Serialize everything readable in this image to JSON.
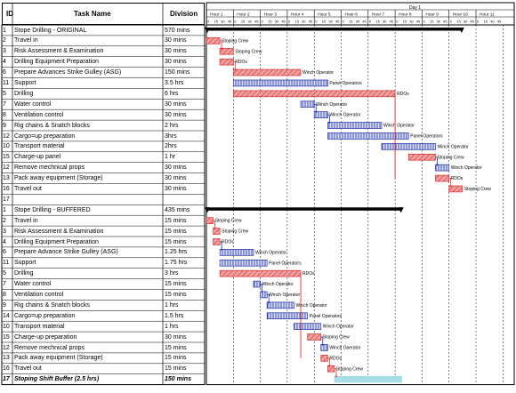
{
  "table": {
    "headers": {
      "id": "ID",
      "task": "Task Name",
      "division": "Division"
    },
    "sections": [
      {
        "rows": [
          {
            "id": "1",
            "name": "Stope Drilling - ORIGINAL",
            "division": "570 mins",
            "start": 0,
            "end": 570,
            "type": "summary"
          },
          {
            "id": "2",
            "name": "Travel in",
            "division": "30 mins",
            "start": 0,
            "end": 30,
            "type": "red",
            "label": "Stoping Crew"
          },
          {
            "id": "3",
            "name": "Risk Assessment & Examination",
            "division": "30 mins",
            "start": 30,
            "end": 60,
            "type": "red",
            "label": "Stoping Crew"
          },
          {
            "id": "4",
            "name": "Drilling Equipment Preparation",
            "division": "30 mins",
            "start": 30,
            "end": 60,
            "type": "red",
            "label": "RDOs"
          },
          {
            "id": "6",
            "name": "Prepare Advances Strike Gulley (ASG)",
            "division": "150 mins",
            "start": 60,
            "end": 210,
            "type": "red",
            "label": "Winch Operator"
          },
          {
            "id": "11",
            "name": "Support",
            "division": "3.5 hrs",
            "start": 60,
            "end": 270,
            "type": "blue",
            "label": "Panel Operators"
          },
          {
            "id": "5",
            "name": "Drilling",
            "division": "6 hrs",
            "start": 60,
            "end": 420,
            "type": "red",
            "label": "RDOs"
          },
          {
            "id": "7",
            "name": "Water control",
            "division": "30 mins",
            "start": 210,
            "end": 240,
            "type": "blue",
            "label": "Winch Operator"
          },
          {
            "id": "8",
            "name": "Ventilation control",
            "division": "30 mins",
            "start": 240,
            "end": 270,
            "type": "blue",
            "label": "Winch Operator"
          },
          {
            "id": "9",
            "name": "Rig chains & Snatch blocks",
            "division": "2 hrs",
            "start": 270,
            "end": 390,
            "type": "blue",
            "label": "Winch Operator"
          },
          {
            "id": "12",
            "name": "Cargo=up preparation",
            "division": "3hrs",
            "start": 270,
            "end": 450,
            "type": "blue",
            "label": "Panel Operators"
          },
          {
            "id": "10",
            "name": "Transport material",
            "division": "2hrs",
            "start": 390,
            "end": 510,
            "type": "blue",
            "label": "Winch Operator"
          },
          {
            "id": "15",
            "name": "Charge-up panel",
            "division": "1 hr",
            "start": 450,
            "end": 510,
            "type": "red",
            "label": "Stoping Crew"
          },
          {
            "id": "12",
            "name": "Remove mechnical props",
            "division": "30 mins",
            "start": 510,
            "end": 540,
            "type": "blue",
            "label": "Winch Operator"
          },
          {
            "id": "13",
            "name": "Pack away equipment (Storage)",
            "division": "30 mins",
            "start": 510,
            "end": 540,
            "type": "red",
            "label": "RDOs"
          },
          {
            "id": "16",
            "name": "Travel out",
            "division": "30 mins",
            "start": 540,
            "end": 570,
            "type": "red",
            "label": "Stoping Crew"
          },
          {
            "id": "17",
            "name": "",
            "division": "",
            "type": "empty"
          }
        ]
      },
      {
        "rows": [
          {
            "id": "1",
            "name": "Stope Drilling - BUFFERED",
            "division": "435 mins",
            "start": 0,
            "end": 435,
            "type": "summary"
          },
          {
            "id": "2",
            "name": "Travel in",
            "division": "15 mins",
            "start": 0,
            "end": 15,
            "type": "red",
            "label": "Stoping Crew"
          },
          {
            "id": "3",
            "name": "Risk Assessment & Examination",
            "division": "15 mins",
            "start": 15,
            "end": 30,
            "type": "red",
            "label": "Stoping Crew"
          },
          {
            "id": "4",
            "name": "Drilling Equipment Preparation",
            "division": "15 mins",
            "start": 15,
            "end": 30,
            "type": "red",
            "label": "RDOs"
          },
          {
            "id": "6",
            "name": "Prepare Advance Strike Gulley (ASG)",
            "division": "1.25 hrs",
            "start": 30,
            "end": 105,
            "type": "blue",
            "label": "Winch Operator"
          },
          {
            "id": "11",
            "name": "Support",
            "division": "1.75 hrs",
            "start": 30,
            "end": 135,
            "type": "blue",
            "label": "Panel Operators"
          },
          {
            "id": "5",
            "name": "Drilling",
            "division": "3 hrs",
            "start": 30,
            "end": 210,
            "type": "red",
            "label": "RDOs"
          },
          {
            "id": "7",
            "name": "Water control",
            "division": "15 mins",
            "start": 105,
            "end": 120,
            "type": "blue",
            "label": "Winch Operator"
          },
          {
            "id": "8",
            "name": "Ventilation control",
            "division": "15 mins",
            "start": 120,
            "end": 135,
            "type": "blue",
            "label": "Winch Operator"
          },
          {
            "id": "9",
            "name": "Rig chains & Snatch blocks",
            "division": "1 hrs",
            "start": 135,
            "end": 195,
            "type": "blue",
            "label": "Winch Operator"
          },
          {
            "id": "14",
            "name": "Cargo=up preparation",
            "division": "1.5 hrs",
            "start": 135,
            "end": 225,
            "type": "blue",
            "label": "Panel Operators"
          },
          {
            "id": "10",
            "name": "Transport material",
            "division": "1 hrs",
            "start": 195,
            "end": 255,
            "type": "blue",
            "label": "Winch Operator"
          },
          {
            "id": "15",
            "name": "Charge-up preparation",
            "division": "30 mins",
            "start": 225,
            "end": 255,
            "type": "red",
            "label": "Stoping Crew"
          },
          {
            "id": "12",
            "name": "Remove mechnical props",
            "division": "15 mins",
            "start": 255,
            "end": 270,
            "type": "blue",
            "label": "Winch Operator"
          },
          {
            "id": "13",
            "name": "Pack away equipment (Storage)",
            "division": "15 mins",
            "start": 255,
            "end": 270,
            "type": "red",
            "label": "RDOs"
          },
          {
            "id": "16",
            "name": "Travel out",
            "division": "15 mins",
            "start": 270,
            "end": 285,
            "type": "red",
            "label": "Stoping Crew"
          },
          {
            "id": "17",
            "name": "Stoping Shift Buffer (2.5 hrs)",
            "division": "150 mins",
            "start": 285,
            "end": 435,
            "type": "buffer",
            "italic": true
          }
        ]
      }
    ]
  },
  "timeline": {
    "day_label": "Day 1",
    "hour_labels": [
      "Hour 1",
      "Hour 2",
      "Hour 3",
      "Hour 4",
      "Hour 5",
      "Hour 6",
      "Hour 7",
      "Hour 8",
      "Hour 9",
      "Hour 10",
      "Hour 11"
    ],
    "minute_ticks": [
      "0",
      "15",
      "30",
      "45"
    ]
  },
  "colors": {
    "red_fill": "#f0a0a0",
    "red_stroke": "#d03030",
    "blue_fill": "#d8dcf8",
    "blue_stroke": "#2030a0",
    "buffer_fill": "#a8dde8",
    "summary": "#000000",
    "link_red": "#e03030",
    "link_blue": "#2030a0"
  }
}
